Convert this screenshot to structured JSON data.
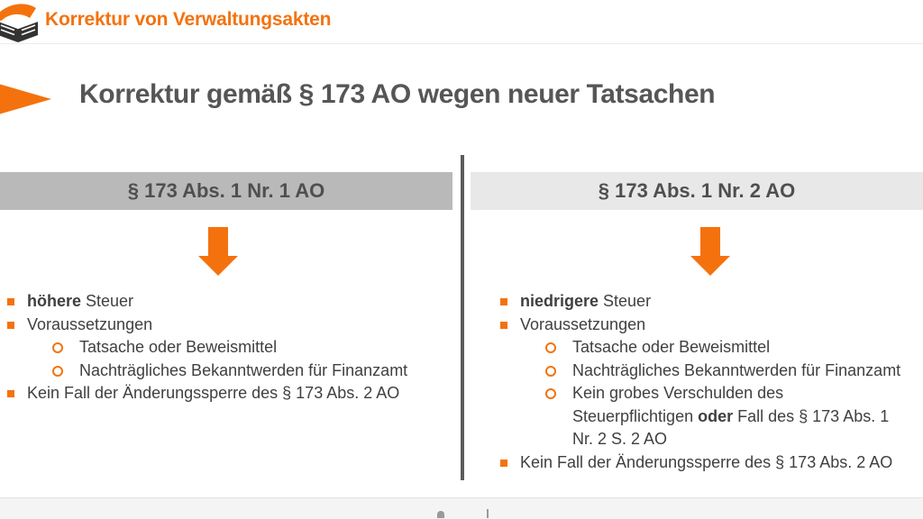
{
  "accent_color": "#f4720e",
  "header": {
    "logo": "open-book-logo",
    "title": "Korrektur von Verwaltungsakten"
  },
  "slide": {
    "title": "Korrektur gemäß § 173 AO wegen neuer Tatsachen"
  },
  "columns": [
    {
      "header": "§ 173 Abs. 1 Nr. 1 AO",
      "header_bg": "#b9b9ba",
      "items": [
        {
          "level": 1,
          "segments": [
            {
              "t": "höhere",
              "b": true
            },
            {
              "t": " Steuer",
              "b": false
            }
          ]
        },
        {
          "level": 1,
          "segments": [
            {
              "t": "Voraussetzungen",
              "b": false
            }
          ]
        },
        {
          "level": 2,
          "segments": [
            {
              "t": "Tatsache oder Beweismittel",
              "b": false
            }
          ]
        },
        {
          "level": 2,
          "segments": [
            {
              "t": "Nachträgliches Bekanntwerden für Finanzamt",
              "b": false
            }
          ]
        },
        {
          "level": 1,
          "segments": [
            {
              "t": "Kein Fall der Änderungssperre des § 173 Abs. 2 AO",
              "b": false
            }
          ]
        }
      ]
    },
    {
      "header": "§ 173 Abs. 1 Nr. 2 AO",
      "header_bg": "#e8e8e8",
      "items": [
        {
          "level": 1,
          "segments": [
            {
              "t": "niedrigere",
              "b": true
            },
            {
              "t": " Steuer",
              "b": false
            }
          ]
        },
        {
          "level": 1,
          "segments": [
            {
              "t": "Voraussetzungen",
              "b": false
            }
          ]
        },
        {
          "level": 2,
          "segments": [
            {
              "t": "Tatsache oder Beweismittel",
              "b": false
            }
          ]
        },
        {
          "level": 2,
          "nowrap": true,
          "segments": [
            {
              "t": "Nachträgliches Bekanntwerden für Finanzamt",
              "b": false
            }
          ]
        },
        {
          "level": 2,
          "segments": [
            {
              "t": "Kein grobes Verschulden des Steuerpflichtigen ",
              "b": false
            },
            {
              "t": "oder",
              "b": true
            },
            {
              "t": " Fall des § 173 Abs. 1 Nr. 2 S. 2 AO",
              "b": false
            }
          ]
        },
        {
          "level": 1,
          "segments": [
            {
              "t": "Kein Fall der Änderungssperre des § 173 Abs. 2 AO",
              "b": false
            }
          ]
        }
      ]
    }
  ]
}
